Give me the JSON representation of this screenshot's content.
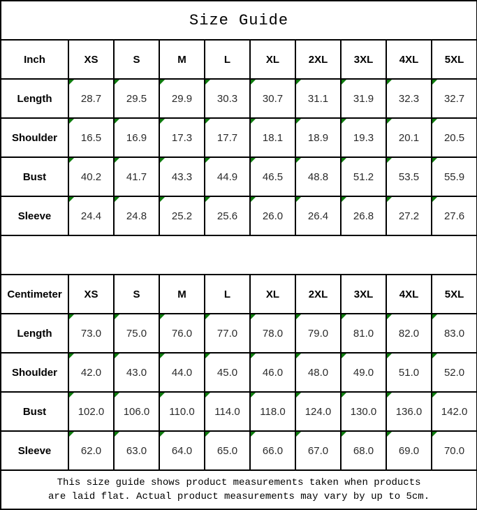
{
  "title": "Size Guide",
  "footer": {
    "line1": "This size guide shows product measurements taken when products",
    "line2": "are laid flat. Actual product measurements may vary by up to 5cm."
  },
  "colors": {
    "flag_green": "#0e7c0e",
    "border": "#000000",
    "text": "#000000"
  },
  "chart_data": [
    {
      "type": "table",
      "name": "inch-size-table",
      "unit": "Inch",
      "header": [
        "Inch",
        "XS",
        "S",
        "M",
        "L",
        "XL",
        "2XL",
        "3XL",
        "4XL",
        "5XL"
      ],
      "rows": [
        {
          "label": "Length",
          "values": [
            "28.7",
            "29.5",
            "29.9",
            "30.3",
            "30.7",
            "31.1",
            "31.9",
            "32.3",
            "32.7"
          ]
        },
        {
          "label": "Shoulder",
          "values": [
            "16.5",
            "16.9",
            "17.3",
            "17.7",
            "18.1",
            "18.9",
            "19.3",
            "20.1",
            "20.5"
          ]
        },
        {
          "label": "Bust",
          "values": [
            "40.2",
            "41.7",
            "43.3",
            "44.9",
            "46.5",
            "48.8",
            "51.2",
            "53.5",
            "55.9"
          ]
        },
        {
          "label": "Sleeve",
          "values": [
            "24.4",
            "24.8",
            "25.2",
            "25.6",
            "26.0",
            "26.4",
            "26.8",
            "27.2",
            "27.6"
          ]
        }
      ]
    },
    {
      "type": "table",
      "name": "centimeter-size-table",
      "unit": "Centimeter",
      "header": [
        "Centimeter",
        "XS",
        "S",
        "M",
        "L",
        "XL",
        "2XL",
        "3XL",
        "4XL",
        "5XL"
      ],
      "rows": [
        {
          "label": "Length",
          "values": [
            "73.0",
            "75.0",
            "76.0",
            "77.0",
            "78.0",
            "79.0",
            "81.0",
            "82.0",
            "83.0"
          ]
        },
        {
          "label": "Shoulder",
          "values": [
            "42.0",
            "43.0",
            "44.0",
            "45.0",
            "46.0",
            "48.0",
            "49.0",
            "51.0",
            "52.0"
          ]
        },
        {
          "label": "Bust",
          "values": [
            "102.0",
            "106.0",
            "110.0",
            "114.0",
            "118.0",
            "124.0",
            "130.0",
            "136.0",
            "142.0"
          ]
        },
        {
          "label": "Sleeve",
          "values": [
            "62.0",
            "63.0",
            "64.0",
            "65.0",
            "66.0",
            "67.0",
            "68.0",
            "69.0",
            "70.0"
          ]
        }
      ]
    }
  ]
}
